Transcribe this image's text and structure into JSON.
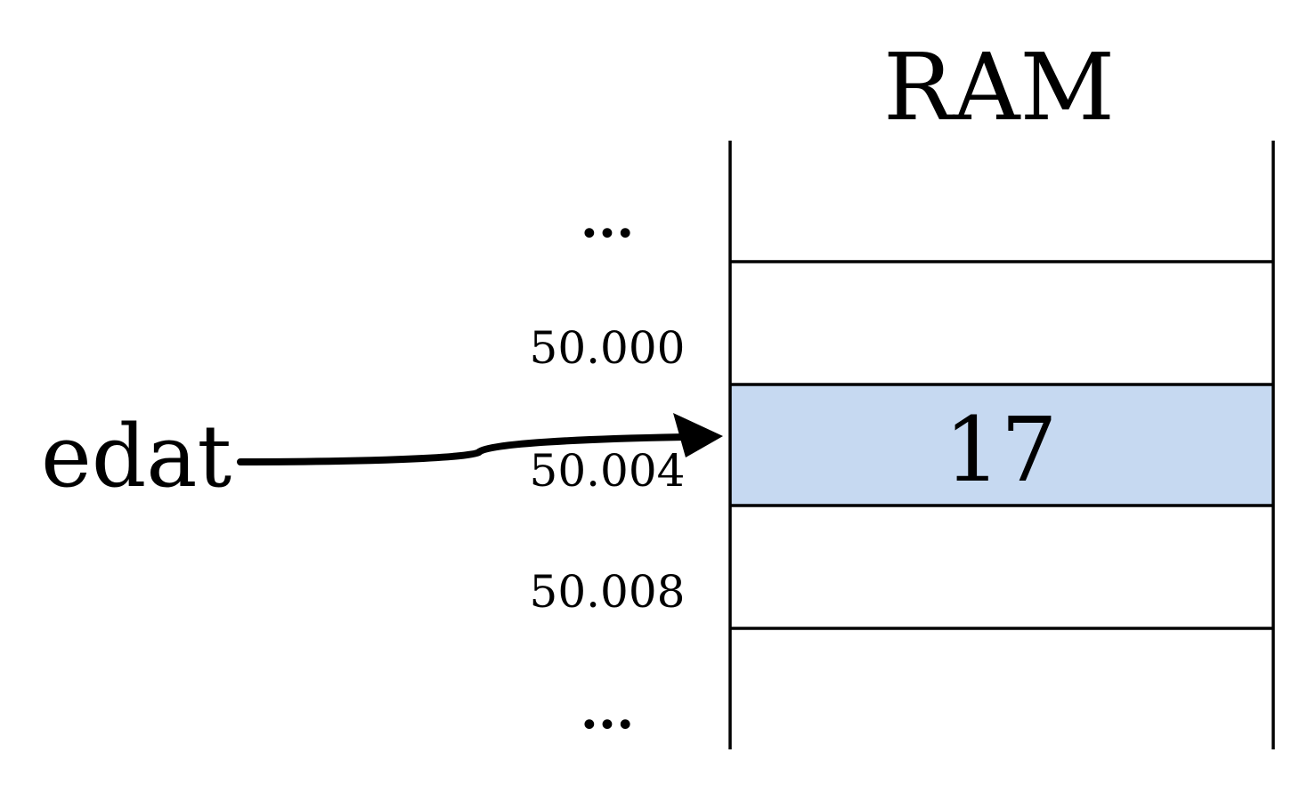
{
  "title": "RAM",
  "variable": {
    "name": "edat"
  },
  "cells": [
    {
      "address": "...",
      "value": "",
      "highlighted": false
    },
    {
      "address": "50.000",
      "value": "",
      "highlighted": false
    },
    {
      "address": "50.004",
      "value": "17",
      "highlighted": true
    },
    {
      "address": "50.008",
      "value": "",
      "highlighted": false
    },
    {
      "address": "...",
      "value": "",
      "highlighted": false
    }
  ],
  "colors": {
    "highlight": "#c6d9f1",
    "line": "#000000"
  }
}
